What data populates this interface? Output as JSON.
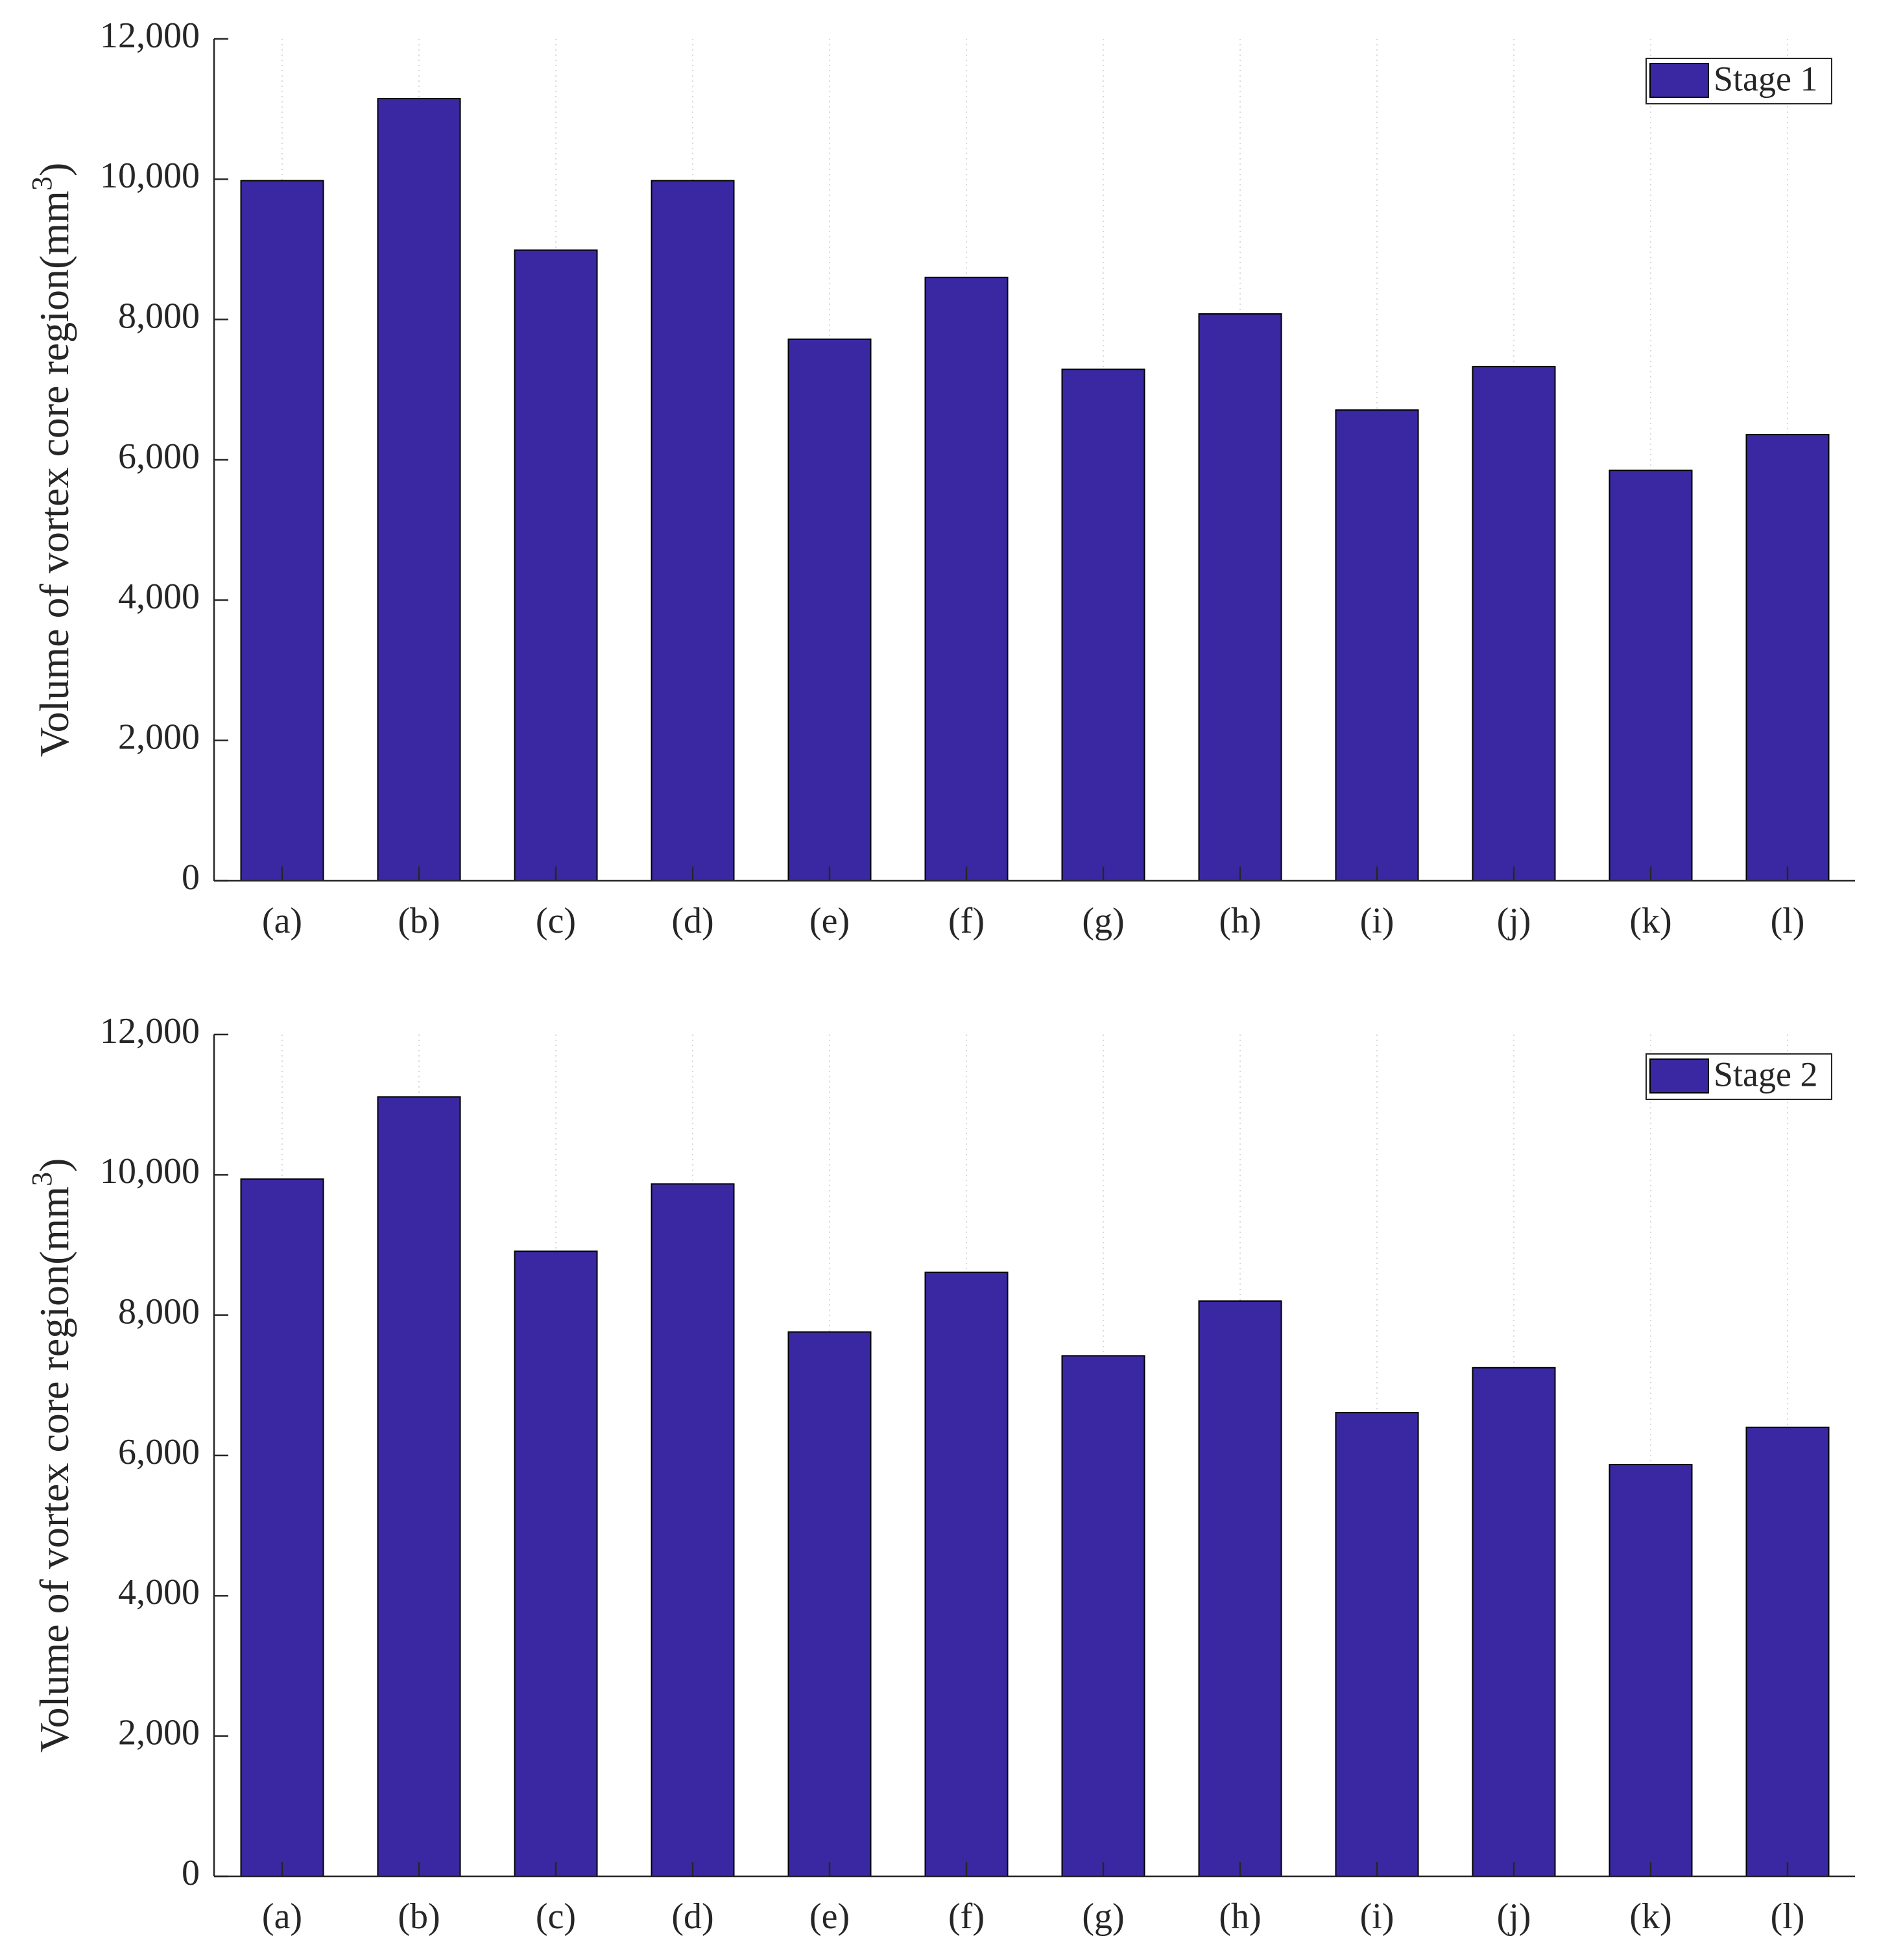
{
  "chart_data": [
    {
      "type": "bar",
      "categories": [
        "(a)",
        "(b)",
        "(c)",
        "(d)",
        "(e)",
        "(f)",
        "(g)",
        "(h)",
        "(i)",
        "(j)",
        "(k)",
        "(l)"
      ],
      "series": [
        {
          "name": "Stage 1",
          "values": [
            9980,
            11150,
            8990,
            9980,
            7720,
            8600,
            7290,
            8080,
            6710,
            7330,
            5850,
            6360
          ]
        }
      ],
      "ylabel_main": "Volume of vortex core region(mm",
      "ylabel_sup": "3",
      "ylabel_close": ")",
      "xlabel": "",
      "ylim": [
        0,
        12000
      ],
      "yticks": [
        0,
        2000,
        4000,
        6000,
        8000,
        10000,
        12000
      ],
      "ytick_labels": [
        "0",
        "2,000",
        "4,000",
        "6,000",
        "8,000",
        "10,000",
        "12,000"
      ],
      "grid": "vertical dotted",
      "legend": "top-right",
      "bar_color": "#3a28a2"
    },
    {
      "type": "bar",
      "categories": [
        "(a)",
        "(b)",
        "(c)",
        "(d)",
        "(e)",
        "(f)",
        "(g)",
        "(h)",
        "(i)",
        "(j)",
        "(k)",
        "(l)"
      ],
      "series": [
        {
          "name": "Stage 2",
          "values": [
            9940,
            11110,
            8910,
            9870,
            7760,
            8610,
            7420,
            8200,
            6610,
            7250,
            5870,
            6400
          ]
        }
      ],
      "ylabel_main": "Volume of vortex core region(mm",
      "ylabel_sup": "3",
      "ylabel_close": ")",
      "xlabel": "",
      "ylim": [
        0,
        12000
      ],
      "yticks": [
        0,
        2000,
        4000,
        6000,
        8000,
        10000,
        12000
      ],
      "ytick_labels": [
        "0",
        "2,000",
        "4,000",
        "6,000",
        "8,000",
        "10,000",
        "12,000"
      ],
      "grid": "vertical dotted",
      "legend": "top-right",
      "bar_color": "#3a28a2"
    }
  ]
}
